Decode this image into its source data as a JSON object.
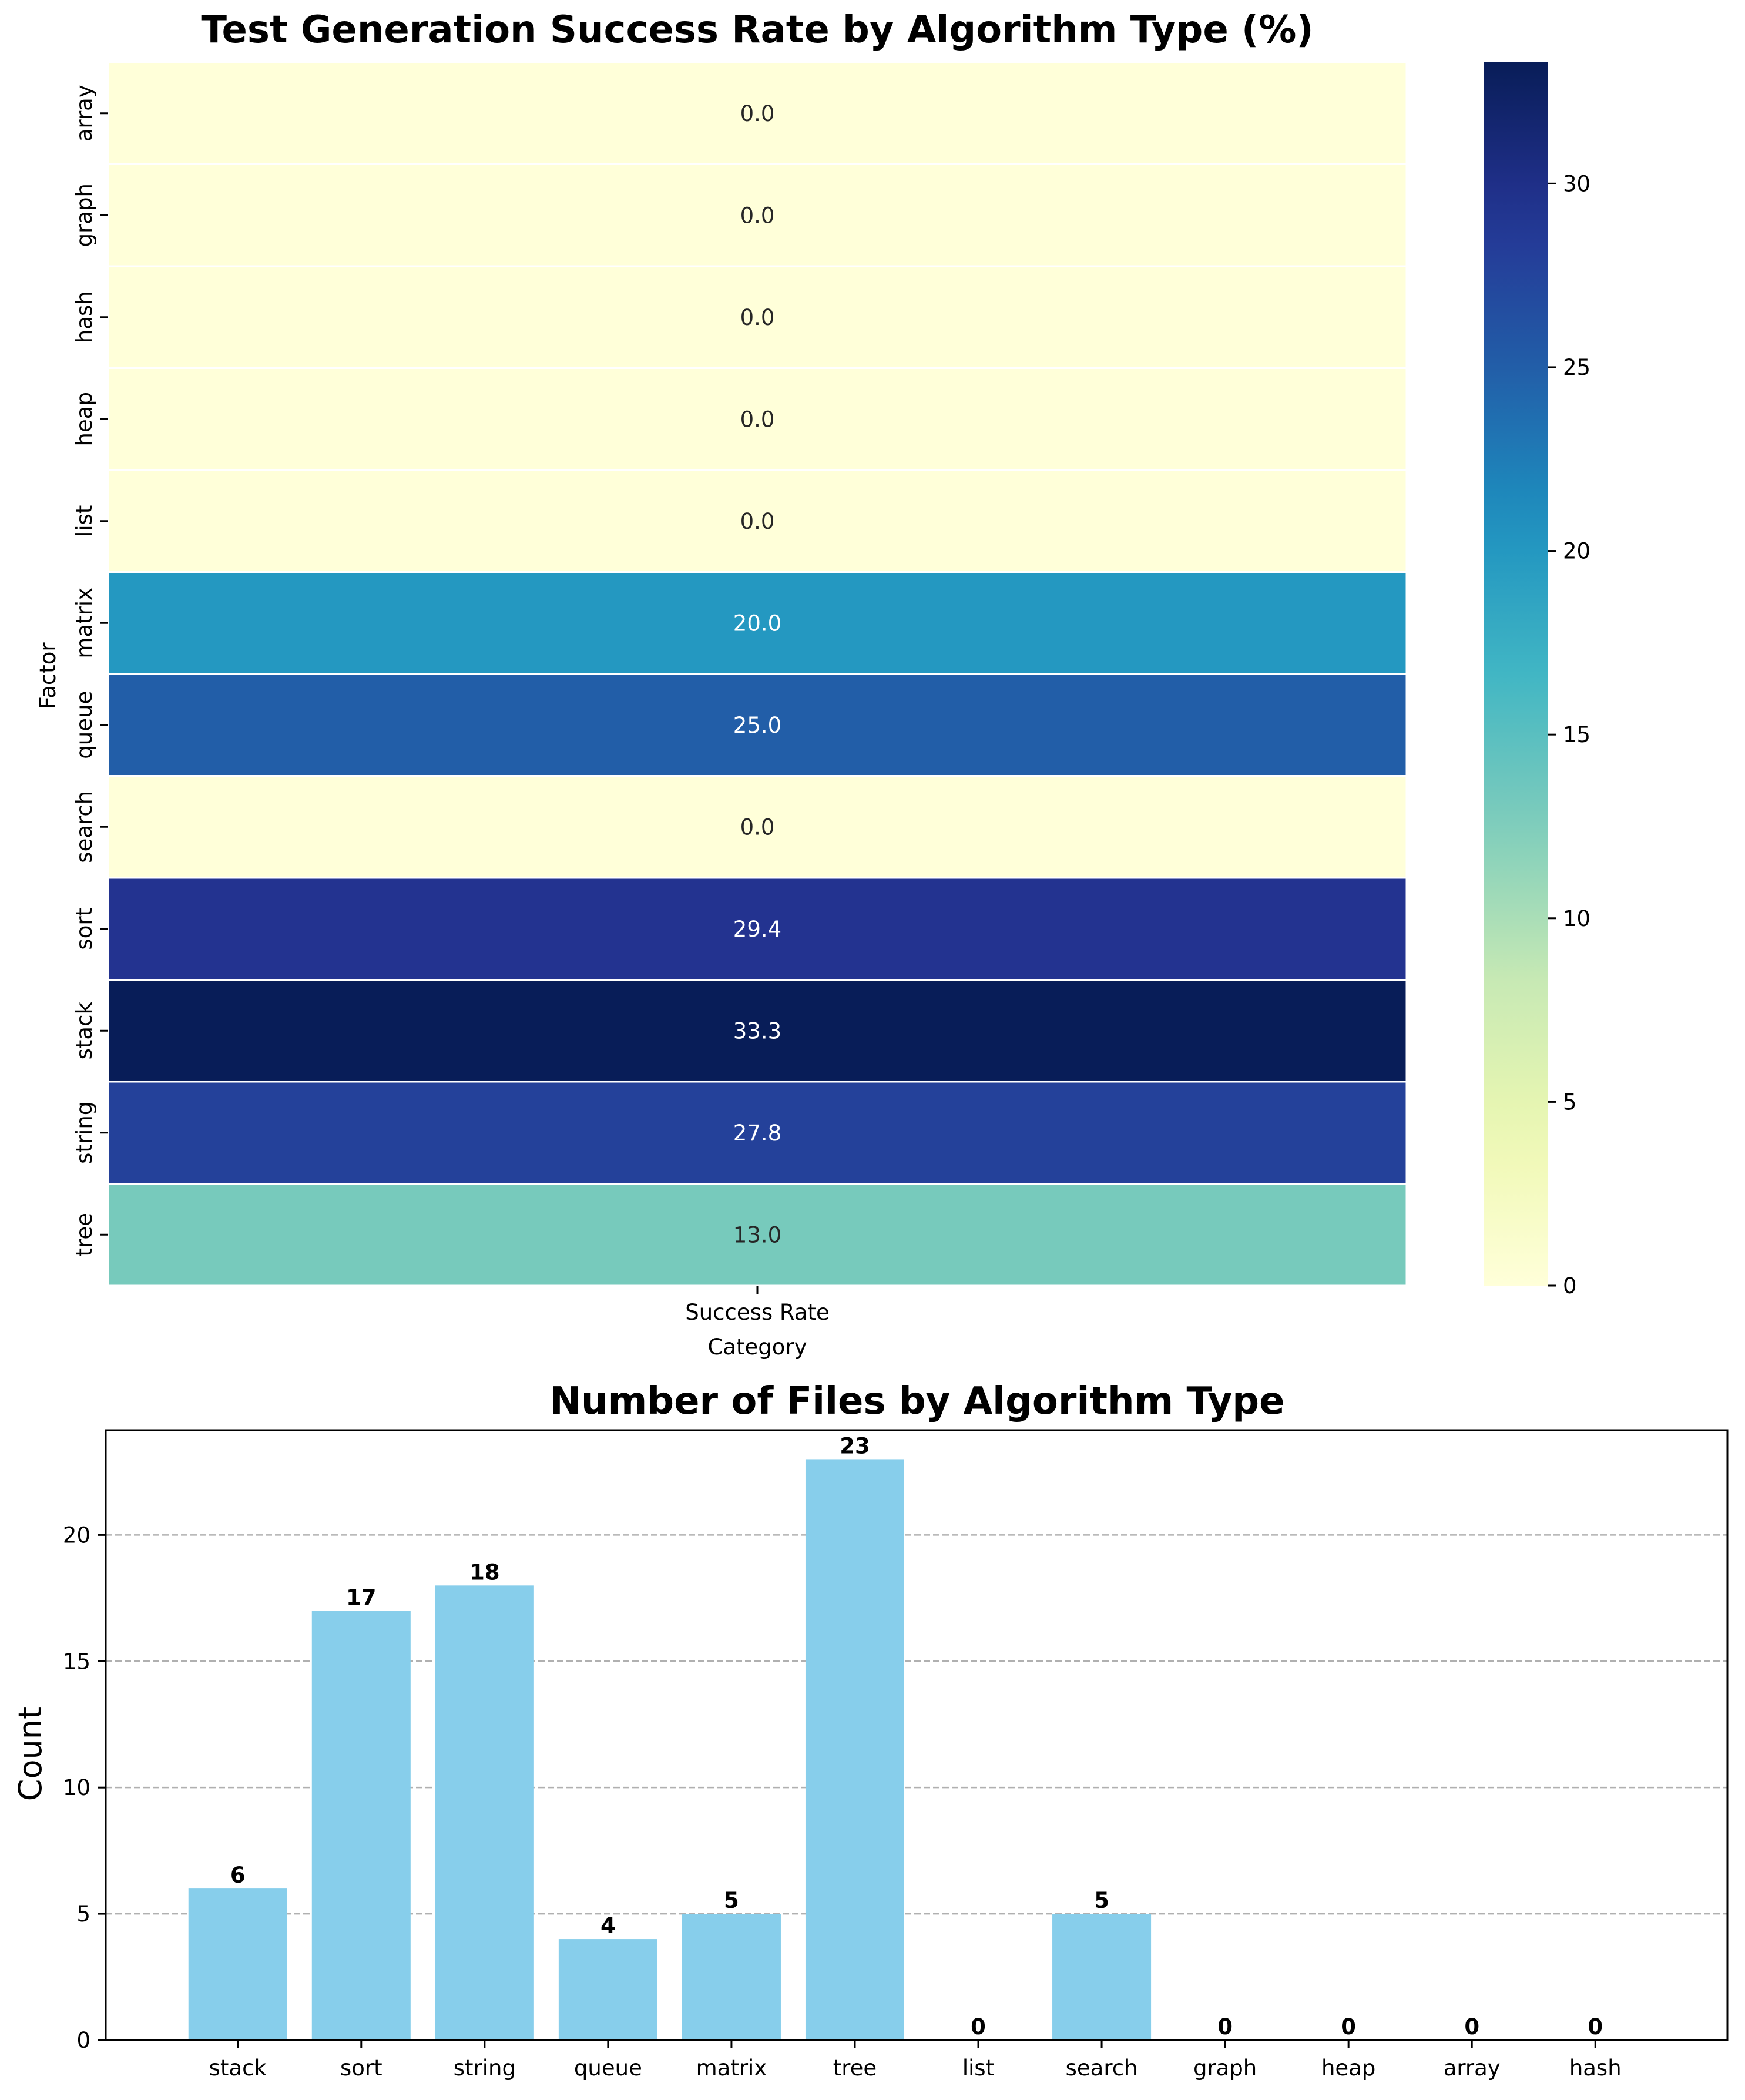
{
  "chart_data": [
    {
      "type": "heatmap",
      "title": "Test Generation Success Rate by Algorithm Type (%)",
      "xlabel": "Category",
      "ylabel": "Factor",
      "columns": [
        "Success Rate"
      ],
      "rows": [
        "array",
        "graph",
        "hash",
        "heap",
        "list",
        "matrix",
        "queue",
        "search",
        "sort",
        "stack",
        "string",
        "tree"
      ],
      "values": [
        0.0,
        0.0,
        0.0,
        0.0,
        0.0,
        20.0,
        25.0,
        0.0,
        29.4,
        33.3,
        27.8,
        13.0
      ],
      "value_labels": [
        "0.0",
        "0.0",
        "0.0",
        "0.0",
        "0.0",
        "20.0",
        "25.0",
        "0.0",
        "29.4",
        "33.3",
        "27.8",
        "13.0"
      ],
      "colormap": "YlGnBu",
      "colorbar": {
        "min": 0,
        "max": 33.3,
        "ticks": [
          0,
          5,
          10,
          15,
          20,
          25,
          30
        ]
      }
    },
    {
      "type": "bar",
      "title": "Number of Files by Algorithm Type",
      "xlabel": "",
      "ylabel": "Count",
      "categories": [
        "stack",
        "sort",
        "string",
        "queue",
        "matrix",
        "tree",
        "list",
        "search",
        "graph",
        "heap",
        "array",
        "hash"
      ],
      "values": [
        6,
        17,
        18,
        4,
        5,
        23,
        0,
        5,
        0,
        0,
        0,
        0
      ],
      "ylim": [
        0,
        24.15
      ],
      "yticks": [
        0,
        5,
        10,
        15,
        20
      ],
      "grid": "y dashed",
      "bar_color": "#87ceeb"
    }
  ]
}
